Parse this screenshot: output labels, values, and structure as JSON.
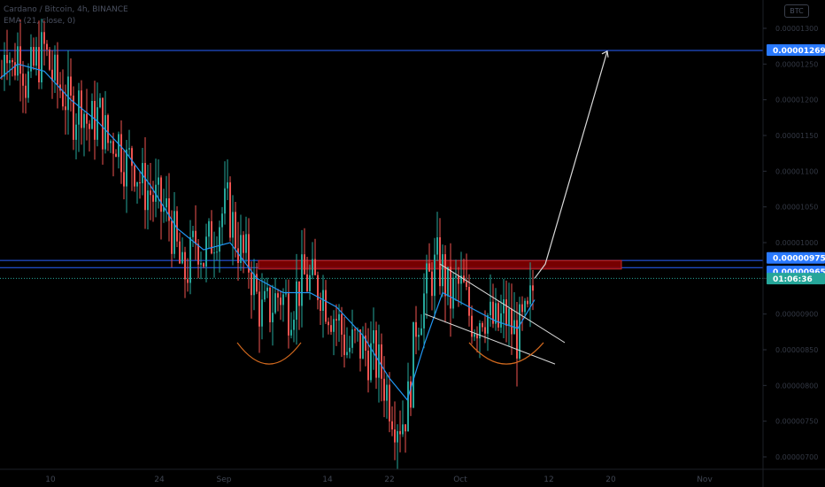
{
  "header": {
    "symbol_line": "Cardano / Bitcoin, 4h, BINANCE",
    "indicator_line": "EMA (21, close, 0)",
    "currency_button": "BTC"
  },
  "price_labels": {
    "target": "0.00001269",
    "level_upper": "0.00000975",
    "level_lower": "0.00000965",
    "countdown": "01:06:36"
  },
  "colors": {
    "background": "#000000",
    "candle_up": "#26a69a",
    "candle_down": "#ef5350",
    "ema": "#2196f3",
    "blue_line": "#2962ff",
    "red_zone": "#8b0000",
    "label_blue": "#2979ff",
    "label_teal": "#26a69a",
    "arcs": "#d2691e",
    "drawing": "#d8d8d8"
  },
  "chart_data": {
    "type": "candlestick",
    "title": "Cardano / Bitcoin, 4h, BINANCE",
    "indicator": "EMA (21, close, 0)",
    "x_ticks": [
      "10",
      "24",
      "Sep",
      "14",
      "22",
      "Oct",
      "12",
      "20",
      "Nov"
    ],
    "y_ticks": [
      "0.00001300",
      "0.00001250",
      "0.00001200",
      "0.00001150",
      "0.00001100",
      "0.00001050",
      "0.00001000",
      "0.00000950",
      "0.00000900",
      "0.00000850",
      "0.00000800",
      "0.00000750",
      "0.00000700"
    ],
    "ylim": [
      6.8e-06,
      1.33e-05
    ],
    "horizontal_levels": [
      1.269e-05,
      9.75e-06,
      9.65e-06
    ],
    "resistance_zone": [
      9.63e-06,
      9.75e-06
    ],
    "last_price": 9.5e-06,
    "price_path": [
      [
        0,
        1.2e-05
      ],
      [
        6,
        1.3e-05
      ],
      [
        14,
        1.24e-05
      ],
      [
        22,
        1.28e-05
      ],
      [
        30,
        1.22e-05
      ],
      [
        40,
        1.25e-05
      ],
      [
        50,
        1.27e-05
      ],
      [
        60,
        1.23e-05
      ],
      [
        72,
        1.21e-05
      ],
      [
        82,
        1.18e-05
      ],
      [
        92,
        1.2e-05
      ],
      [
        100,
        1.16e-05
      ],
      [
        112,
        1.18e-05
      ],
      [
        122,
        1.14e-05
      ],
      [
        132,
        1.15e-05
      ],
      [
        142,
        1.11e-05
      ],
      [
        150,
        1.12e-05
      ],
      [
        160,
        1.08e-05
      ],
      [
        170,
        1.07e-05
      ],
      [
        180,
        1.05e-05
      ],
      [
        190,
        1.04e-05
      ],
      [
        198,
        1e-05
      ],
      [
        206,
        9.5e-06
      ],
      [
        214,
        9.7e-06
      ],
      [
        222,
        1.01e-05
      ],
      [
        230,
        9.8e-06
      ],
      [
        240,
        1.01e-05
      ],
      [
        250,
        1.04e-05
      ],
      [
        258,
        1.05e-05
      ],
      [
        266,
        1.01e-05
      ],
      [
        274,
        9.8e-06
      ],
      [
        282,
        9.7e-06
      ],
      [
        288,
        9.3e-06
      ],
      [
        296,
        9e-06
      ],
      [
        306,
        9.1e-06
      ],
      [
        316,
        9.3e-06
      ],
      [
        326,
        9.1e-06
      ],
      [
        334,
        9.3e-06
      ],
      [
        344,
        9.5e-06
      ],
      [
        354,
        9.4e-06
      ],
      [
        362,
        9.4e-06
      ],
      [
        372,
        9.1e-06
      ],
      [
        382,
        8.9e-06
      ],
      [
        392,
        8.5e-06
      ],
      [
        402,
        8.6e-06
      ],
      [
        412,
        8.5e-06
      ],
      [
        422,
        8.4e-06
      ],
      [
        430,
        8.2e-06
      ],
      [
        438,
        7.9e-06
      ],
      [
        446,
        7.6e-06
      ],
      [
        454,
        7.5e-06
      ],
      [
        462,
        7.8e-06
      ],
      [
        470,
        8.9e-06
      ],
      [
        478,
        9.2e-06
      ],
      [
        486,
        9.5e-06
      ],
      [
        494,
        9.7e-06
      ],
      [
        500,
        9.6e-06
      ],
      [
        508,
        9.2e-06
      ],
      [
        516,
        9.4e-06
      ],
      [
        524,
        9.3e-06
      ],
      [
        530,
        9e-06
      ],
      [
        538,
        8.9e-06
      ],
      [
        546,
        9.1e-06
      ],
      [
        554,
        8.9e-06
      ],
      [
        562,
        8.8e-06
      ],
      [
        570,
        9e-06
      ],
      [
        578,
        8.8e-06
      ],
      [
        584,
        8.7e-06
      ],
      [
        590,
        8.8e-06
      ],
      [
        596,
        8.9e-06
      ],
      [
        600,
        9.2e-06
      ],
      [
        604,
        9.5e-06
      ]
    ],
    "ema_path": [
      [
        0,
        1.23e-05
      ],
      [
        20,
        1.25e-05
      ],
      [
        50,
        1.24e-05
      ],
      [
        80,
        1.2e-05
      ],
      [
        110,
        1.17e-05
      ],
      [
        140,
        1.13e-05
      ],
      [
        170,
        1.08e-05
      ],
      [
        200,
        1.02e-05
      ],
      [
        230,
        9.9e-06
      ],
      [
        260,
        1e-05
      ],
      [
        290,
        9.5e-06
      ],
      [
        320,
        9.3e-06
      ],
      [
        350,
        9.3e-06
      ],
      [
        380,
        9.1e-06
      ],
      [
        410,
        8.7e-06
      ],
      [
        440,
        8.1e-06
      ],
      [
        460,
        7.8e-06
      ],
      [
        480,
        8.6e-06
      ],
      [
        500,
        9.3e-06
      ],
      [
        530,
        9.1e-06
      ],
      [
        560,
        8.9e-06
      ],
      [
        585,
        8.8e-06
      ],
      [
        604,
        9.2e-06
      ]
    ],
    "projection_path": [
      [
        604,
        9.5e-06
      ],
      [
        616,
        9.7e-06
      ],
      [
        686,
        1.268e-05
      ]
    ],
    "wedge_upper": [
      [
        497,
        9.7e-06
      ],
      [
        638,
        8.6e-06
      ]
    ],
    "wedge_lower": [
      [
        480,
        9e-06
      ],
      [
        627,
        8.3e-06
      ]
    ],
    "arcs": [
      {
        "x1": 268,
        "x2": 340,
        "y": 8.6e-06,
        "depth": 3e-07
      },
      {
        "x1": 530,
        "x2": 614,
        "y": 8.6e-06,
        "depth": 3e-07
      }
    ]
  }
}
